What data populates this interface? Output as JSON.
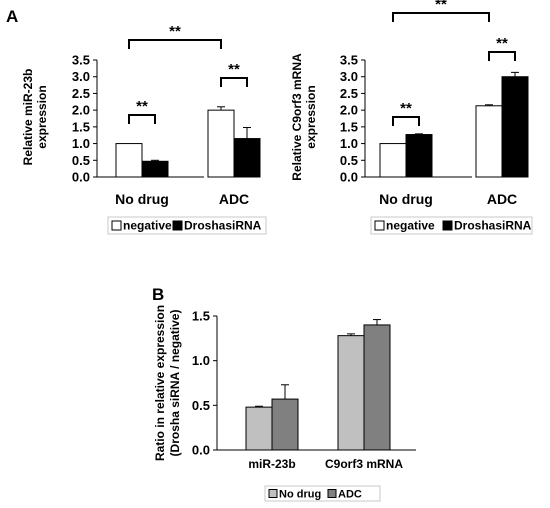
{
  "panels": {
    "a": {
      "label": "A"
    },
    "b": {
      "label": "B"
    }
  },
  "colors": {
    "negative": "#ffffff",
    "drosha": "#000000",
    "nodrug": "#c0c0c0",
    "adc": "#808080"
  },
  "chart_data": [
    {
      "type": "bar",
      "ylabel": [
        "Relative miR-23b",
        "expression"
      ],
      "categories": [
        "No drug",
        "ADC"
      ],
      "ylim": [
        0,
        3.5
      ],
      "yticks": [
        "0.0",
        "0.5",
        "1.0",
        "1.5",
        "2.0",
        "2.5",
        "3.0",
        "3.5"
      ],
      "series": [
        {
          "name": "negative",
          "values": [
            1.0,
            2.0
          ],
          "errors": [
            0.0,
            0.1
          ]
        },
        {
          "name": "DroshasiRNA",
          "values": [
            0.47,
            1.15
          ],
          "errors": [
            0.03,
            0.33
          ]
        }
      ],
      "significance": [
        {
          "label": "**",
          "from": [
            0,
            0
          ],
          "to": [
            0,
            1
          ]
        },
        {
          "label": "**",
          "from": [
            1,
            0
          ],
          "to": [
            1,
            1
          ]
        },
        {
          "label": "**",
          "from": [
            0,
            0
          ],
          "to": [
            1,
            0
          ]
        }
      ],
      "legend": {
        "position": "bottom"
      }
    },
    {
      "type": "bar",
      "ylabel": [
        "Relative C9orf3 mRNA",
        "expression"
      ],
      "categories": [
        "No drug",
        "ADC"
      ],
      "ylim": [
        0,
        3.5
      ],
      "yticks": [
        "0.0",
        "0.5",
        "1.0",
        "1.5",
        "2.0",
        "2.5",
        "3.0",
        "3.5"
      ],
      "series": [
        {
          "name": "negative",
          "values": [
            1.0,
            2.13
          ],
          "errors": [
            0.0,
            0.03
          ]
        },
        {
          "name": "DroshasiRNA",
          "values": [
            1.27,
            3.0
          ],
          "errors": [
            0.02,
            0.13
          ]
        }
      ],
      "significance": [
        {
          "label": "**",
          "from": [
            0,
            0
          ],
          "to": [
            0,
            1
          ]
        },
        {
          "label": "**",
          "from": [
            1,
            0
          ],
          "to": [
            1,
            1
          ]
        },
        {
          "label": "**",
          "from": [
            0,
            0
          ],
          "to": [
            1,
            0
          ]
        }
      ],
      "legend": {
        "position": "bottom"
      }
    },
    {
      "type": "bar",
      "ylabel": [
        "Ratio in relative expression",
        "(Drosha siRNA / negative)"
      ],
      "categories": [
        "miR-23b",
        "C9orf3 mRNA"
      ],
      "ylim": [
        0,
        1.5
      ],
      "yticks": [
        "0.0",
        "0.5",
        "1.0",
        "1.5"
      ],
      "series": [
        {
          "name": "No drug",
          "values": [
            0.48,
            1.28
          ],
          "errors": [
            0.01,
            0.02
          ]
        },
        {
          "name": "ADC",
          "values": [
            0.57,
            1.4
          ],
          "errors": [
            0.16,
            0.06
          ]
        }
      ],
      "legend": {
        "position": "bottom"
      }
    }
  ]
}
